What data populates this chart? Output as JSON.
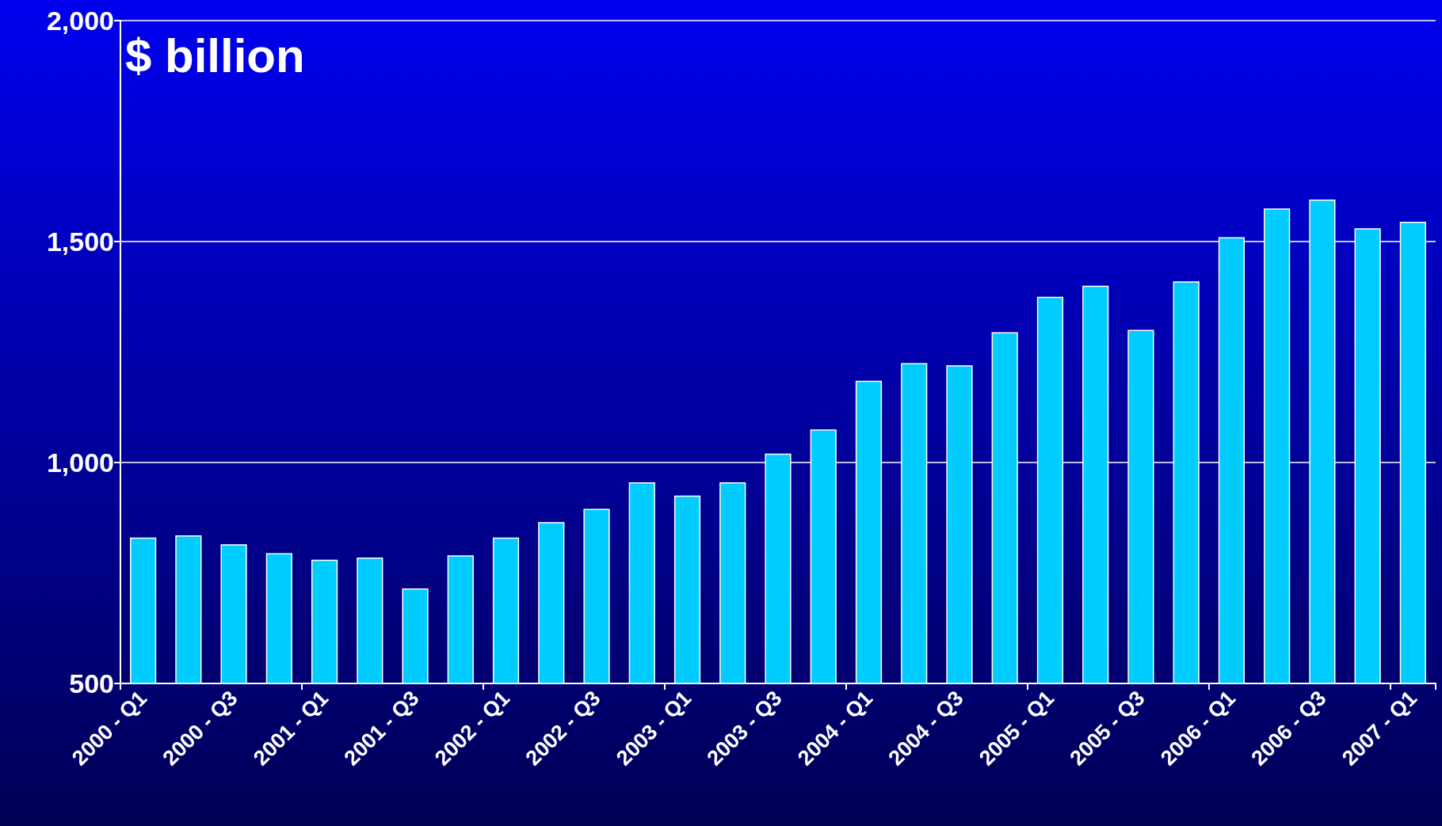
{
  "chart_data": {
    "type": "bar",
    "ylabel": "$ billion",
    "categories": [
      "2000 - Q1",
      null,
      "2000 - Q3",
      null,
      "2001 - Q1",
      null,
      "2001 - Q3",
      null,
      "2002 - Q1",
      null,
      "2002 - Q3",
      null,
      "2003 - Q1",
      null,
      "2003 - Q3",
      null,
      "2004 - Q1",
      null,
      "2004 - Q3",
      null,
      "2005 - Q1",
      null,
      "2005 - Q3",
      null,
      "2006 - Q1",
      null,
      "2006 - Q3",
      null,
      "2007 - Q1"
    ],
    "values": [
      830,
      835,
      815,
      795,
      780,
      785,
      715,
      790,
      830,
      865,
      895,
      955,
      925,
      955,
      1020,
      1075,
      1185,
      1225,
      1220,
      1295,
      1375,
      1400,
      1300,
      1410,
      1510,
      1575,
      1595,
      1530,
      1545
    ],
    "color": "#00ccff",
    "ylim": [
      500,
      2000
    ],
    "yticks": [
      {
        "value": 500,
        "label": "500"
      },
      {
        "value": 1000,
        "label": "1,000"
      },
      {
        "value": 1500,
        "label": "1,500"
      },
      {
        "value": 2000,
        "label": "2,000"
      }
    ],
    "grid": "y"
  }
}
